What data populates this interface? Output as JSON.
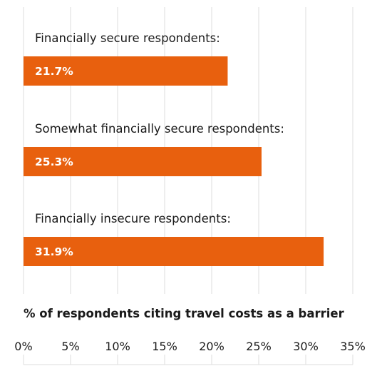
{
  "chart_data": {
    "type": "bar",
    "orientation": "horizontal",
    "categories": [
      "Financially secure respondents:",
      "Somewhat financially secure respondents:",
      "Financially insecure respondents:"
    ],
    "values": [
      21.7,
      25.3,
      31.9
    ],
    "value_labels": [
      "21.7%",
      "25.3%",
      "31.9%"
    ],
    "xlabel": "% of respondents citing travel costs as a barrier",
    "xlim": [
      0,
      35
    ],
    "x_ticks": [
      0,
      5,
      10,
      15,
      20,
      25,
      30,
      35
    ],
    "x_tick_labels": [
      "0%",
      "5%",
      "10%",
      "15%",
      "20%",
      "25%",
      "30%",
      "35%"
    ],
    "grid": "vertical",
    "legend": "none",
    "colors": {
      "bar": "#e8600e",
      "grid": "#dedede",
      "text": "#1a1a1a",
      "value_text": "#ffffff"
    }
  }
}
